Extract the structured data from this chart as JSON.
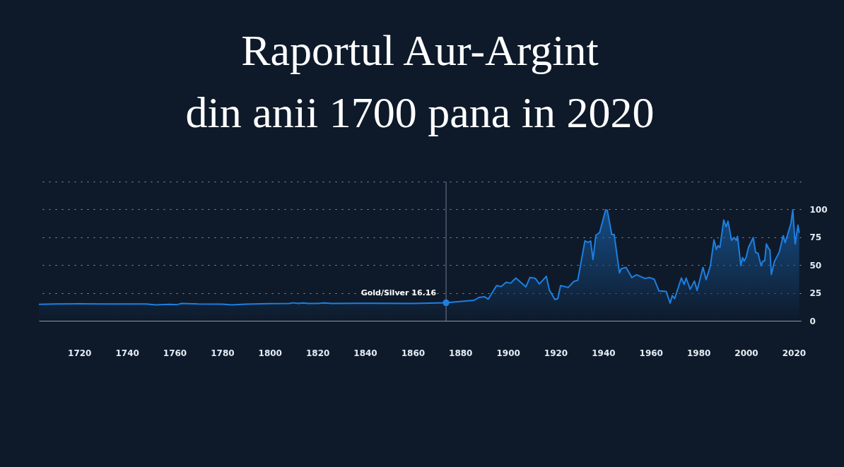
{
  "chart_data": {
    "type": "area",
    "title": "Raportul Aur-Argint\ndin anii 1700 pana in 2020",
    "series": [
      {
        "color": "#1e7fe0",
        "x": [
          1703,
          1710,
          1720,
          1730,
          1740,
          1748,
          1752,
          1758,
          1761,
          1763,
          1770,
          1780,
          1784,
          1790,
          1800,
          1808,
          1810,
          1812,
          1814,
          1816,
          1820,
          1823,
          1826,
          1840,
          1860,
          1874,
          1885.8,
          1887.8,
          1890.2,
          1891.7,
          1895.2,
          1897.2,
          1899.2,
          1901.1,
          1903.3,
          1907.5,
          1909.2,
          1911.5,
          1913.2,
          1916.1,
          1917.4,
          1919.7,
          1920.9,
          1922.1,
          1925.3,
          1927.6,
          1929.3,
          1932.3,
          1933.7,
          1934.7,
          1935.7,
          1936.9,
          1938.5,
          1941,
          1941.7,
          1943.6,
          1944.6,
          1946.8,
          1947.6,
          1949.6,
          1952,
          1954,
          1957.5,
          1959.5,
          1961.4,
          1963.4,
          1966.4,
          1968.1,
          1969,
          1970,
          1972.8,
          1974,
          1974.8,
          1976.5,
          1978.3,
          1979.4,
          1981.9,
          1983.2,
          1985,
          1986.5,
          1987.5,
          1988.2,
          1989,
          1990.6,
          1991.6,
          1992.4,
          1993.9,
          1994.9,
          1995.9,
          1996.4,
          1997.8,
          1998.5,
          1999.2,
          2000,
          2001,
          2003,
          2004,
          2005,
          2006.3,
          2007,
          2007.8,
          2008.5,
          2009.5,
          2010,
          2010.6,
          2011.9,
          2013.9,
          2015.6,
          2016.4,
          2018.8,
          2019.6,
          2020.6,
          2021.8,
          2022.3
        ],
        "values": [
          14.8,
          15.1,
          15.2,
          15.1,
          15,
          15,
          14.3,
          14.8,
          14.5,
          15.5,
          15,
          14.9,
          14.2,
          14.9,
          15.4,
          15.6,
          16.1,
          15.5,
          16,
          15.5,
          15.5,
          16,
          15.6,
          15.7,
          15.6,
          16.2,
          18.4,
          20.9,
          21.5,
          19.4,
          31.6,
          30.8,
          34.6,
          33.7,
          38.4,
          30.4,
          38.8,
          38,
          33.1,
          39.9,
          27.4,
          19,
          19.8,
          31.6,
          29.9,
          35.2,
          36.3,
          71.7,
          70.4,
          71.7,
          54.9,
          76.8,
          79.3,
          99.6,
          99.2,
          77.4,
          77.4,
          43,
          46.8,
          47.9,
          38.8,
          41.3,
          38,
          38.8,
          37.3,
          26.8,
          26.4,
          15.8,
          22.6,
          19.8,
          38.4,
          32.7,
          38.4,
          28.3,
          35.6,
          27.2,
          47.9,
          36.9,
          49.4,
          72.6,
          64.1,
          67.5,
          65.8,
          90.5,
          84.4,
          89.4,
          72.2,
          74.7,
          72.2,
          75.9,
          49.4,
          56.8,
          53.6,
          57,
          65.8,
          74.7,
          61.2,
          60.6,
          49.4,
          53.6,
          53.6,
          69,
          64.7,
          63.7,
          41.6,
          53.2,
          61.6,
          76.4,
          70.1,
          87.3,
          99.6,
          69,
          85.9,
          78.9
        ]
      }
    ],
    "xlim": [
      1703,
      2023
    ],
    "xticks": [
      1720,
      1740,
      1760,
      1780,
      1800,
      1820,
      1840,
      1860,
      1880,
      1900,
      1920,
      1940,
      1960,
      1980,
      2000,
      2020
    ],
    "ylim": [
      0,
      125
    ],
    "yticks": [
      0,
      25,
      50,
      75,
      100,
      {
        "value": 125,
        "label": null
      }
    ],
    "grid": "y",
    "legend": false,
    "marker": "none",
    "ref_lines": [
      {
        "axis": "x",
        "value": 1874
      }
    ],
    "annotations": [
      {
        "text": "Gold/Silver 16.16",
        "x": 1874,
        "y": 16.16
      }
    ]
  }
}
